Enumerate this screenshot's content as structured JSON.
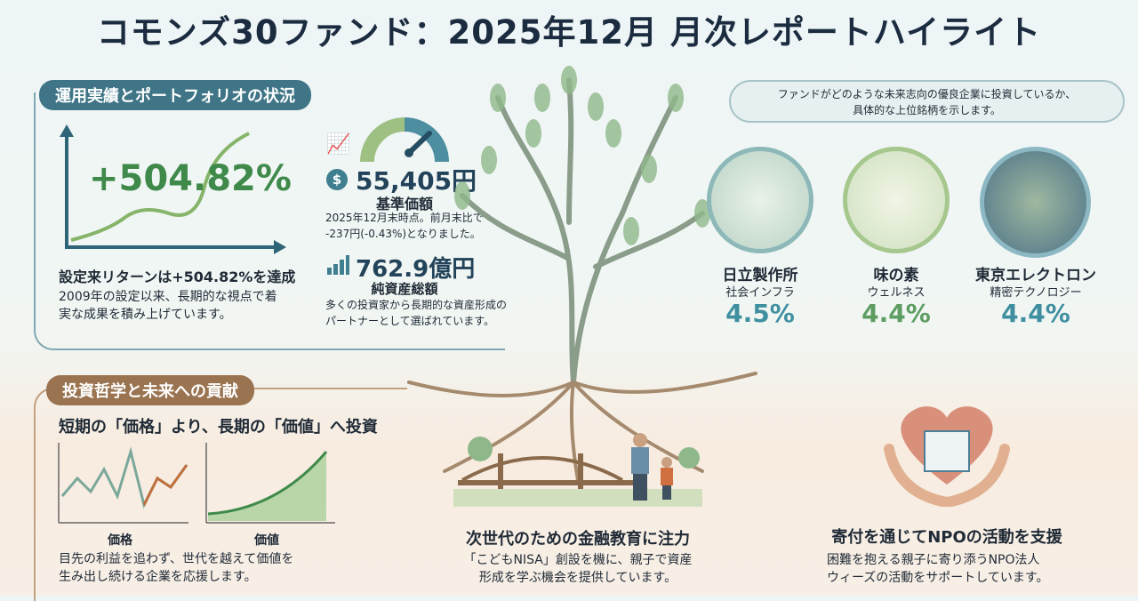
{
  "title": "コモンズ30ファンド：2025年12月 月次レポートハイライト",
  "performance": {
    "section_label": "運用実績とポートフォリオの状況",
    "return_big": "+504.82%",
    "return_heading": "設定来リターンは+504.82%を達成",
    "return_desc_1": "2009年の設定以来、長期的な視点で着",
    "return_desc_2": "実な成果を積み上げています。",
    "nav_value": "55,405円",
    "nav_label": "基準価額",
    "nav_desc_1": "2025年12月末時点。前月末比で",
    "nav_desc_2": "-237円(-0.43%)となりました。",
    "aum_value": "762.9億円",
    "aum_label": "純資産総額",
    "aum_desc_1": "多くの投資家から長期的な資産形成の",
    "aum_desc_2": "パートナーとして選ばれています。"
  },
  "holdings": {
    "intro_1": "ファンドがどのような未来志向の優良企業に投資しているか、",
    "intro_2": "具体的な上位銘柄を示します。",
    "items": [
      {
        "name": "日立製作所",
        "sector": "社会インフラ",
        "weight": "4.5%",
        "color": "#3f8fa0"
      },
      {
        "name": "味の素",
        "sector": "ウェルネス",
        "weight": "4.4%",
        "color": "#5e9d62"
      },
      {
        "name": "東京エレクトロン",
        "sector": "精密テクノロジー",
        "weight": "4.4%",
        "color": "#3f8fa0"
      }
    ]
  },
  "philosophy": {
    "section_label": "投資哲学と未来への貢献",
    "heading": "短期の「価格」より、長期の「価値」へ投資",
    "price_label": "価格",
    "value_label": "価値",
    "desc_1": "目先の利益を追わず、世代を越えて価値を",
    "desc_2": "生み出し続ける企業を応援します。"
  },
  "education": {
    "heading": "次世代のための金融教育に注力",
    "desc_1": "「こどもNISA」創設を機に、親子で資産",
    "desc_2": "形成を学ぶ機会を提供しています。"
  },
  "donation": {
    "heading": "寄付を通じてNPOの活動を支援",
    "desc_1": "困難を抱える親子に寄り添うNPO法人",
    "desc_2": "ウィーズの活動をサポートしています。"
  },
  "colors": {
    "teal": "#3f7f8f",
    "green": "#4e8f52",
    "brown": "#9a7350",
    "navy": "#1c2c40"
  }
}
